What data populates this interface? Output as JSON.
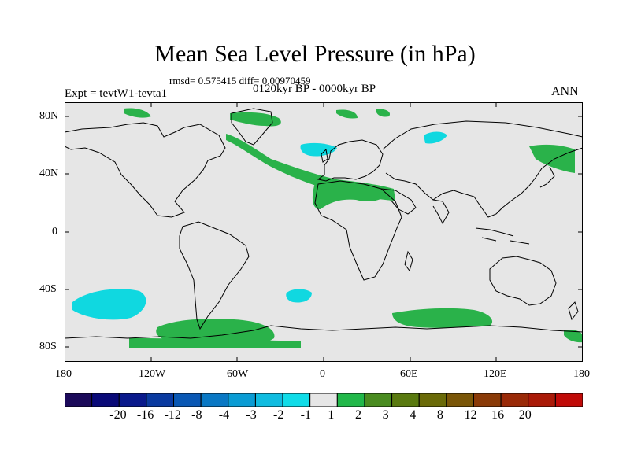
{
  "title": "Mean Sea Level Pressure (in hPa)",
  "stats": "rmsd= 0.575415 diff= 0.00970459",
  "experiment": "Expt = tevtW1-tevta1",
  "period": "0120kyr BP - 0000kyr BP",
  "season": "ANN",
  "map": {
    "projection": "cylindrical-equidistant",
    "background_color": "#e6e6e6",
    "y_ticks": [
      "80N",
      "40N",
      "0",
      "40S",
      "80S"
    ],
    "x_ticks": [
      "180",
      "120W",
      "60W",
      "0",
      "60E",
      "120E",
      "180"
    ],
    "anomaly_regions": [
      {
        "name": "north-atlantic-band",
        "level": "1 to 2",
        "color": "#2ab24a"
      },
      {
        "name": "mediterranean-band",
        "level": "1 to 2",
        "color": "#2ab24a"
      },
      {
        "name": "greenland-arctic",
        "level": "1 to 2",
        "color": "#2ab24a"
      },
      {
        "name": "north-pacific-east",
        "level": "1 to 2",
        "color": "#2ab24a"
      },
      {
        "name": "southern-ocean-indian",
        "level": "1 to 2",
        "color": "#2ab24a"
      },
      {
        "name": "antarctica-west",
        "level": "1 to 2",
        "color": "#2ab24a"
      },
      {
        "name": "scandinavia-low",
        "level": "-2 to -1",
        "color": "#10d8e0"
      },
      {
        "name": "barents-low",
        "level": "-2 to -1",
        "color": "#10d8e0"
      },
      {
        "name": "south-pacific-low",
        "level": "-2 to -1",
        "color": "#10d8e0"
      },
      {
        "name": "south-atlantic-low",
        "level": "-2 to -1",
        "color": "#10d8e0"
      }
    ]
  },
  "colorbar": {
    "colors": [
      "#1c0a5a",
      "#0a0a78",
      "#0a1a8c",
      "#0a3aa0",
      "#0a58b4",
      "#0a78c4",
      "#0a9cd4",
      "#10bce0",
      "#10dce8",
      "#e6e6e6",
      "#22b84a",
      "#4a8c20",
      "#5a7a10",
      "#6a6a08",
      "#7a5608",
      "#8a3a08",
      "#9a2a08",
      "#aa1a08",
      "#c00a08"
    ],
    "labels": [
      "-20",
      "-16",
      "-12",
      "-8",
      "-4",
      "-3",
      "-2",
      "-1",
      "1",
      "2",
      "3",
      "4",
      "8",
      "12",
      "16",
      "20"
    ]
  }
}
